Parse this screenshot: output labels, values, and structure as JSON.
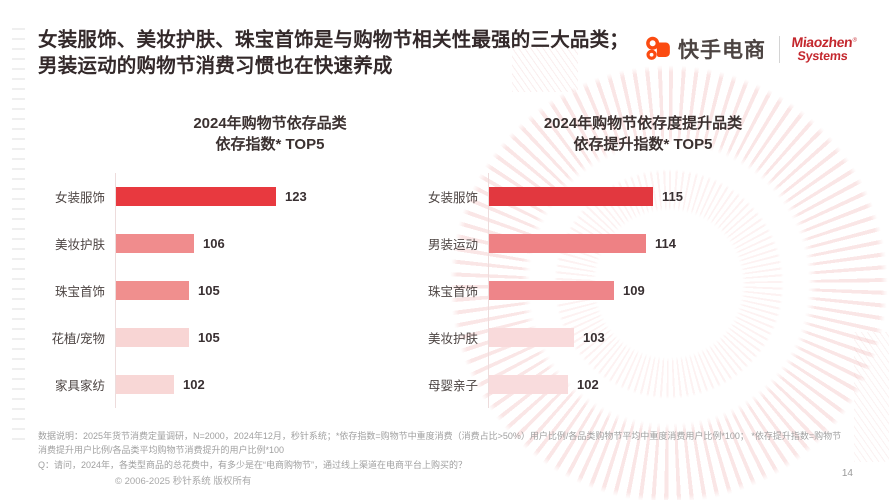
{
  "slide": {
    "title": "女装服饰、美妆护肤、珠宝首饰是与购物节相关性最强的三大品类；男装运动的购物节消费习惯也在快速养成",
    "copyright": "© 2006-2025 秒针系统 版权所有",
    "page_number": "14"
  },
  "header": {
    "kuaishou_label": "快手电商",
    "miaozhen_line1": "Miaozhen",
    "miaozhen_reg": "®",
    "miaozhen_line2": "Systems",
    "kuaishou_orange": "#fb4b11",
    "miaozhen_red": "#c4282e"
  },
  "chart_data": [
    {
      "type": "bar",
      "orientation": "horizontal",
      "title": "2024年购物节依存品类",
      "subtitle": "依存指数* TOP5",
      "categories": [
        "女装服饰",
        "美妆护肤",
        "珠宝首饰",
        "花植/宠物",
        "家具家纺"
      ],
      "values": [
        123,
        106,
        105,
        105,
        102
      ],
      "bar_colors": [
        "#e8393f",
        "#f08c8d",
        "#f08f8e",
        "#f8d5d4",
        "#f8d7d6"
      ],
      "xlim": [
        90,
        123
      ],
      "grid": false,
      "value_labels": true
    },
    {
      "type": "bar",
      "orientation": "horizontal",
      "title": "2024年购物节依存度提升品类",
      "subtitle": "依存提升指数* TOP5",
      "categories": [
        "女装服饰",
        "男装运动",
        "珠宝首饰",
        "美妆护肤",
        "母婴亲子"
      ],
      "values": [
        115,
        114,
        109,
        103,
        102
      ],
      "bar_colors": [
        "#e2383f",
        "#ee8184",
        "#ee8589",
        "#f9dadb",
        "#f9dcdd"
      ],
      "xlim": [
        90,
        115
      ],
      "grid": false,
      "value_labels": true
    }
  ],
  "footer": {
    "data_note": "数据说明：2025年货节消费定量调研，N=2000，2024年12月，秒针系统；*依存指数=购物节中重度消费（消费占比>50%）用户比例/各品类购物节平均中重度消费用户比例*100；  *依存提升指数=购物节消费提升用户比例/各品类平均购物节消费提升的用户比例*100",
    "q_note": "Q：请问，2024年，各类型商品的总花费中，有多少是在“电商购物节”，通过线上渠道在电商平台上购买的？"
  }
}
